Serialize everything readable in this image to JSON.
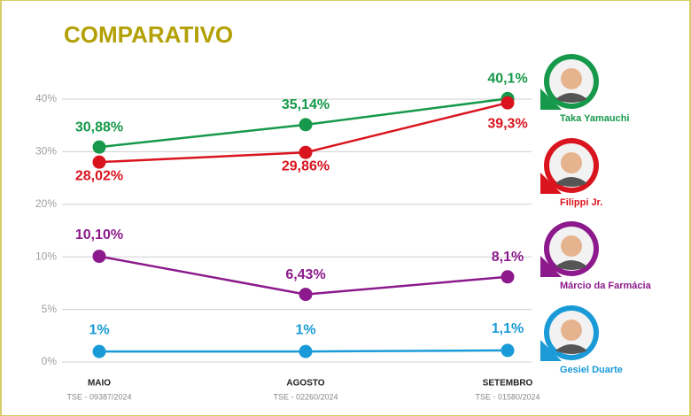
{
  "chart_data": {
    "type": "line",
    "title": "COMPARATIVO",
    "categories": [
      "MAIO",
      "AGOSTO",
      "SETEMBRO"
    ],
    "category_notes": [
      "TSE - 09387/2024",
      "TSE - 02260/2024",
      "TSE - 01580/2024"
    ],
    "yticks": [
      {
        "value": 0,
        "label": "0%"
      },
      {
        "value": 5,
        "label": "5%"
      },
      {
        "value": 10,
        "label": "10%"
      },
      {
        "value": 20,
        "label": "20%"
      },
      {
        "value": 30,
        "label": "30%"
      },
      {
        "value": 40,
        "label": "40%"
      }
    ],
    "ylim": [
      0,
      40
    ],
    "grid": true,
    "series": [
      {
        "name": "Taka Yamauchi",
        "color": "#16994a",
        "values": [
          30.88,
          35.14,
          40.1
        ],
        "value_labels": [
          "30,88%",
          "35,14%",
          "40,1%"
        ]
      },
      {
        "name": "Filippi Jr.",
        "color": "#d9141e",
        "values": [
          28.02,
          29.86,
          39.3
        ],
        "value_labels": [
          "28,02%",
          "29,86%",
          "39,3%"
        ]
      },
      {
        "name": "Márcio da Farmácia",
        "color": "#8c1a8c",
        "values": [
          10.1,
          6.43,
          8.1
        ],
        "value_labels": [
          "10,10%",
          "6,43%",
          "8,1%"
        ]
      },
      {
        "name": "Gesiel Duarte",
        "color": "#1a9bd7",
        "values": [
          1,
          1,
          1.1
        ],
        "value_labels": [
          "1%",
          "1%",
          "1,1%"
        ]
      }
    ]
  }
}
